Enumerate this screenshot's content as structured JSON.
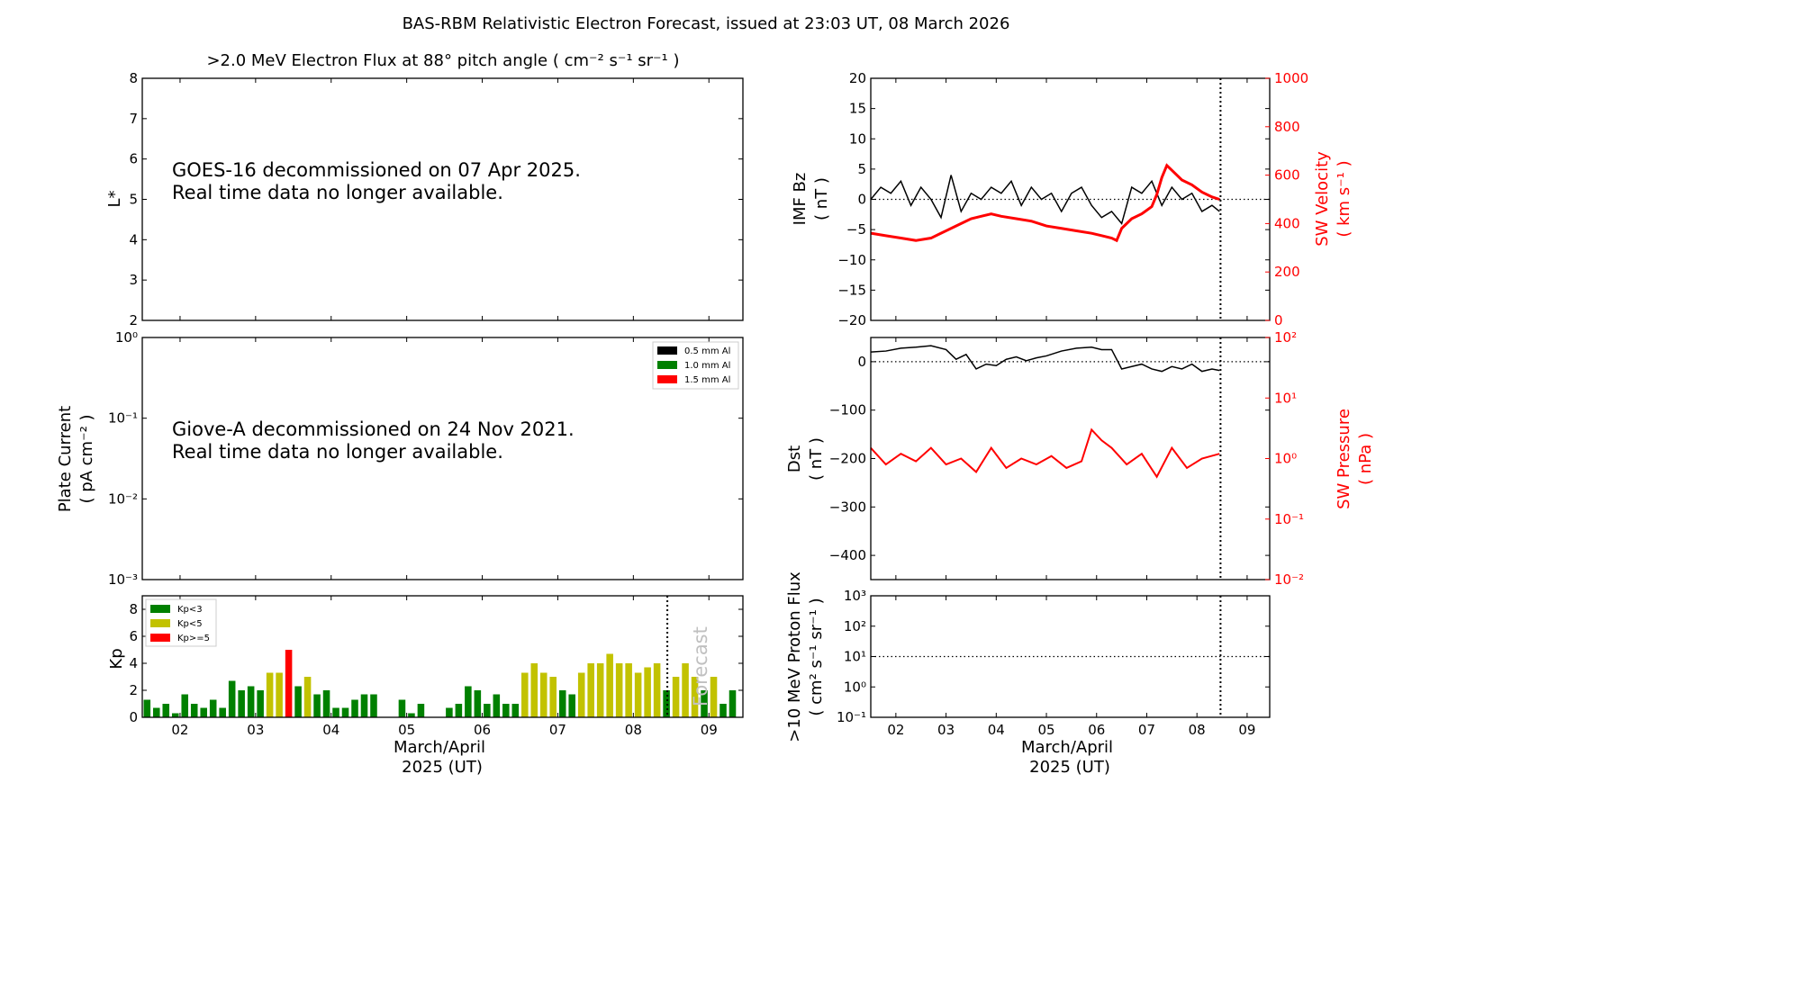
{
  "suptitle": "BAS-RBM Relativistic Electron Forecast, issued at 23:03 UT, 08 March 2026",
  "colors": {
    "kp_low": "#008000",
    "kp_mid": "#c2c200",
    "kp_high": "#ff0000",
    "bz": "#000000",
    "sw": "#ff0000",
    "forecast": "#c0c0c0"
  },
  "chart_data": [
    {
      "id": "electron_flux",
      "type": "line",
      "title": ">2.0 MeV Electron Flux at 88° pitch angle ( cm⁻² s⁻¹ sr⁻¹ )",
      "ylabel": "L*",
      "ylim": [
        2,
        8
      ],
      "yticks": [
        "2",
        "3",
        "4",
        "5",
        "6",
        "7",
        "8"
      ],
      "annotation": [
        "GOES-16 decommissioned on 07 Apr 2025.",
        "Real time data no longer available."
      ]
    },
    {
      "id": "plate_current",
      "type": "line",
      "ylabel": [
        "Plate Current",
        "( pA cm⁻² )"
      ],
      "ylim": [
        0.001,
        1
      ],
      "yscale": "log",
      "yticks": [
        "10⁻³",
        "10⁻²",
        "10⁻¹",
        "10⁰"
      ],
      "legend": [
        "0.5 mm Al",
        "1.0 mm Al",
        "1.5 mm Al"
      ],
      "legend_colors": [
        "#000000",
        "#008000",
        "#ff0000"
      ],
      "legend_position": "top-right",
      "annotation": [
        "Giove-A decommissioned on 24 Nov 2021.",
        "Real time data no longer available."
      ]
    },
    {
      "id": "kp",
      "type": "bar",
      "ylabel": "Kp",
      "xlabel": [
        "March/April",
        "2025 (UT)"
      ],
      "xlim": [
        1.5,
        9.45
      ],
      "ylim": [
        0,
        9
      ],
      "yticks": [
        "0",
        "2",
        "4",
        "6",
        "8"
      ],
      "xticks": [
        "02",
        "03",
        "04",
        "05",
        "06",
        "07",
        "08",
        "09"
      ],
      "forecast_start": 8.45,
      "forecast_label": "Forecast",
      "legend": [
        "Kp<3",
        "Kp<5",
        "Kp>=5"
      ],
      "legend_position": "top-left",
      "bar_width_days": 0.1,
      "x": [
        1.563,
        1.688,
        1.813,
        1.938,
        2.063,
        2.188,
        2.313,
        2.438,
        2.563,
        2.688,
        2.813,
        2.938,
        3.063,
        3.188,
        3.313,
        3.438,
        3.563,
        3.688,
        3.813,
        3.938,
        4.063,
        4.188,
        4.313,
        4.438,
        4.563,
        4.688,
        4.813,
        4.938,
        5.063,
        5.188,
        5.313,
        5.438,
        5.563,
        5.688,
        5.813,
        5.938,
        6.063,
        6.188,
        6.313,
        6.438,
        6.563,
        6.688,
        6.813,
        6.938,
        7.063,
        7.188,
        7.313,
        7.438,
        7.563,
        7.688,
        7.813,
        7.938,
        8.063,
        8.188,
        8.313,
        8.438,
        8.563,
        8.688,
        8.813,
        8.938,
        9.063,
        9.188,
        9.313,
        9.438
      ],
      "values": [
        1.3,
        0.7,
        1.0,
        0.3,
        1.7,
        1.0,
        0.7,
        1.3,
        0.7,
        2.7,
        2.0,
        2.3,
        2.0,
        3.3,
        3.3,
        5.0,
        2.3,
        3.0,
        1.7,
        2.0,
        0.7,
        0.7,
        1.3,
        1.7,
        1.7,
        0.0,
        0.0,
        1.3,
        0.3,
        1.0,
        0.0,
        0.0,
        0.7,
        1.0,
        2.3,
        2.0,
        1.0,
        1.7,
        1.0,
        1.0,
        3.3,
        4.0,
        3.3,
        3.0,
        2.0,
        1.7,
        3.3,
        4.0,
        4.0,
        4.7,
        4.0,
        4.0,
        3.3,
        3.7,
        4.0,
        2.0,
        3.0,
        4.0,
        3.0,
        2.0,
        3.0,
        1.0,
        2.0,
        0.0
      ]
    },
    {
      "id": "imf_bz_sw_velocity",
      "type": "line",
      "ylabel": [
        "IMF Bz",
        "( nT )"
      ],
      "y2label": [
        "SW Velocity",
        "( km s⁻¹ )"
      ],
      "xlim": [
        1.5,
        9.45
      ],
      "ylim": [
        -20,
        20
      ],
      "y2lim": [
        0,
        1000
      ],
      "yticks": [
        "−20",
        "−15",
        "−10",
        "−5",
        "0",
        "5",
        "10",
        "15",
        "20"
      ],
      "y2ticks": [
        "0",
        "200",
        "400",
        "600",
        "800",
        "1000"
      ],
      "issue_time": 8.47,
      "series": [
        {
          "axis": "left",
          "color": "#000000",
          "x": [
            1.5,
            1.7,
            1.9,
            2.1,
            2.3,
            2.5,
            2.7,
            2.9,
            3.1,
            3.3,
            3.5,
            3.7,
            3.9,
            4.1,
            4.3,
            4.5,
            4.7,
            4.9,
            5.1,
            5.3,
            5.5,
            5.7,
            5.9,
            6.1,
            6.3,
            6.5,
            6.7,
            6.9,
            7.1,
            7.3,
            7.5,
            7.7,
            7.9,
            8.1,
            8.3,
            8.45
          ],
          "y": [
            0,
            2,
            1,
            3,
            -1,
            2,
            0,
            -3,
            4,
            -2,
            1,
            0,
            2,
            1,
            3,
            -1,
            2,
            0,
            1,
            -2,
            1,
            2,
            -1,
            -3,
            -2,
            -4,
            2,
            1,
            3,
            -1,
            2,
            0,
            1,
            -2,
            -1,
            -2
          ]
        },
        {
          "axis": "right",
          "color": "#ff0000",
          "x": [
            1.5,
            1.8,
            2.1,
            2.4,
            2.7,
            2.9,
            3.1,
            3.3,
            3.5,
            3.7,
            3.9,
            4.1,
            4.4,
            4.7,
            5.0,
            5.3,
            5.6,
            5.9,
            6.1,
            6.3,
            6.4,
            6.5,
            6.7,
            6.9,
            7.1,
            7.2,
            7.3,
            7.4,
            7.5,
            7.7,
            7.9,
            8.1,
            8.3,
            8.45
          ],
          "y": [
            360,
            350,
            340,
            330,
            340,
            360,
            380,
            400,
            420,
            430,
            440,
            430,
            420,
            410,
            390,
            380,
            370,
            360,
            350,
            340,
            330,
            380,
            420,
            440,
            470,
            520,
            590,
            640,
            620,
            580,
            560,
            530,
            510,
            500
          ]
        }
      ]
    },
    {
      "id": "dst_sw_pressure",
      "type": "line",
      "ylabel": [
        "Dst",
        "( nT )"
      ],
      "y2label": [
        "SW Pressure",
        "( nPa )"
      ],
      "xlim": [
        1.5,
        9.45
      ],
      "ylim": [
        -450,
        50
      ],
      "y2lim": [
        0.01,
        100
      ],
      "y2scale": "log",
      "yticks": [
        "0",
        "−100",
        "−200",
        "−300",
        "−400"
      ],
      "y2ticks": [
        "10⁻²",
        "10⁻¹",
        "10⁰",
        "10¹",
        "10²"
      ],
      "issue_time": 8.47,
      "series": [
        {
          "axis": "left",
          "color": "#000000",
          "x": [
            1.5,
            1.8,
            2.1,
            2.4,
            2.7,
            3.0,
            3.2,
            3.4,
            3.6,
            3.8,
            4.0,
            4.2,
            4.4,
            4.6,
            4.8,
            5.0,
            5.3,
            5.6,
            5.9,
            6.1,
            6.3,
            6.5,
            6.7,
            6.9,
            7.1,
            7.3,
            7.5,
            7.7,
            7.9,
            8.1,
            8.3,
            8.45
          ],
          "y": [
            20,
            22,
            28,
            30,
            33,
            25,
            5,
            15,
            -15,
            -5,
            -8,
            5,
            10,
            2,
            8,
            12,
            22,
            28,
            30,
            25,
            25,
            -15,
            -10,
            -5,
            -15,
            -20,
            -10,
            -15,
            -5,
            -20,
            -15,
            -18
          ]
        },
        {
          "axis": "right",
          "color": "#ff0000",
          "x": [
            1.5,
            1.8,
            2.1,
            2.4,
            2.7,
            3.0,
            3.3,
            3.6,
            3.9,
            4.2,
            4.5,
            4.8,
            5.1,
            5.4,
            5.7,
            5.9,
            6.1,
            6.3,
            6.6,
            6.9,
            7.2,
            7.5,
            7.8,
            8.1,
            8.45
          ],
          "y": [
            1.5,
            0.8,
            1.2,
            0.9,
            1.5,
            0.8,
            1.0,
            0.6,
            1.5,
            0.7,
            1.0,
            0.8,
            1.1,
            0.7,
            0.9,
            3.0,
            2.0,
            1.5,
            0.8,
            1.2,
            0.5,
            1.5,
            0.7,
            1.0,
            1.2
          ]
        }
      ]
    },
    {
      "id": "proton_flux",
      "type": "line",
      "ylabel": [
        ">10 MeV Proton Flux",
        "( cm² s⁻¹ sr⁻¹ )"
      ],
      "xlabel": [
        "March/April",
        "2025 (UT)"
      ],
      "xlim": [
        1.5,
        9.45
      ],
      "ylim": [
        0.1,
        1000
      ],
      "yscale": "log",
      "yticks": [
        "10⁻¹",
        "10⁰",
        "10¹",
        "10²",
        "10³"
      ],
      "xticks": [
        "02",
        "03",
        "04",
        "05",
        "06",
        "07",
        "08",
        "09"
      ],
      "threshold": 10,
      "issue_time": 8.47
    }
  ]
}
